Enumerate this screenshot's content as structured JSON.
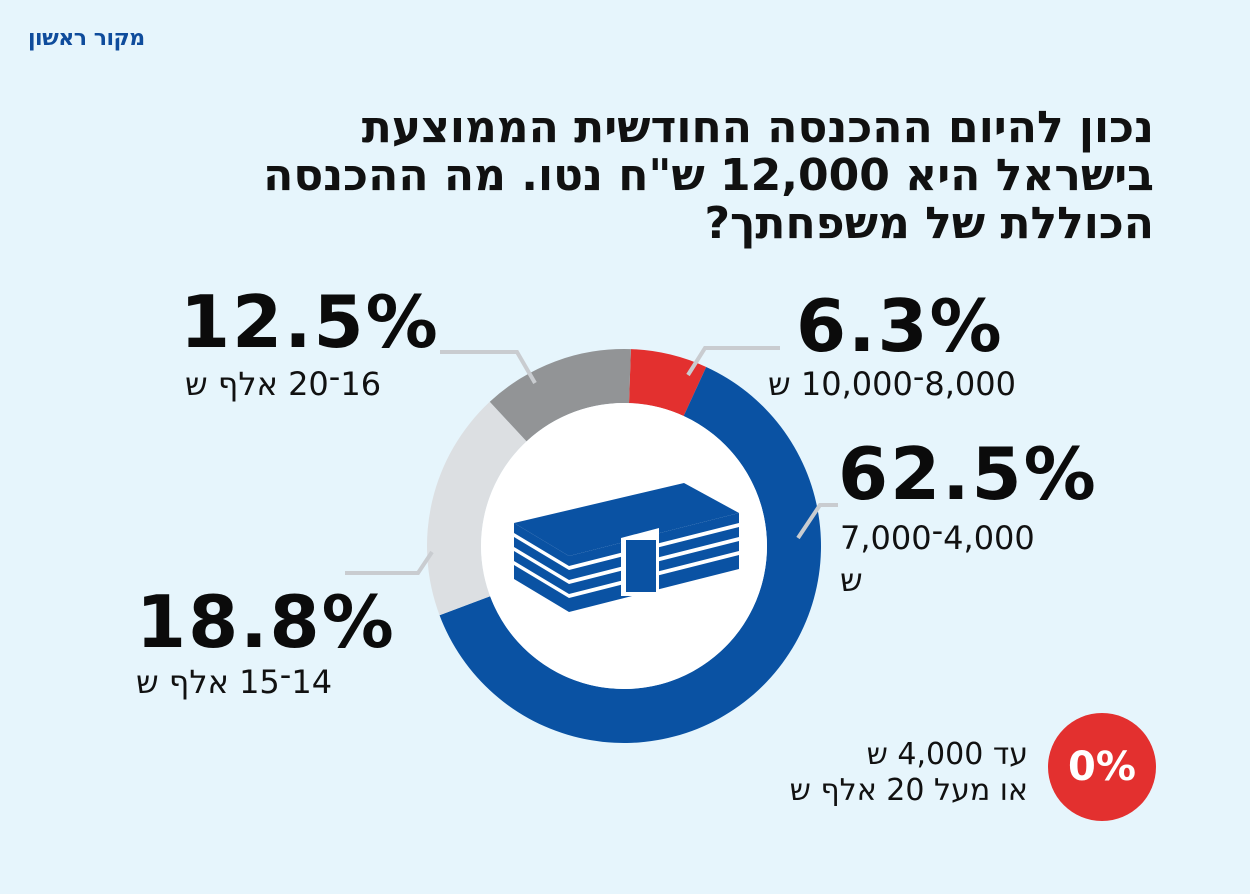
{
  "brand": "מקור ראשון",
  "title_lines": [
    "נכון להיום ההכנסה החודשית הממוצעת",
    "בישראל היא 12,000 ש\"ח נטו. מה ההכנסה",
    "הכוללת של משפחתך?"
  ],
  "colors": {
    "blue": "#0a52a3",
    "red": "#e3302f",
    "gray": "#929496",
    "lightgray": "#dcdfe2",
    "background": "#e6f5fc"
  },
  "chart_data": {
    "type": "pie",
    "style": "donut",
    "center_icon": "money-stack-icon",
    "slices": [
      {
        "range": "8,000־10,000 ש",
        "value": 6.3,
        "label": "6.3%",
        "color": "#e3302f"
      },
      {
        "range": "4,000־7,000 ש",
        "value": 62.5,
        "label": "62.5%",
        "color": "#0a52a3"
      },
      {
        "range": "14־15 אלף ש",
        "value": 18.8,
        "label": "18.8%",
        "color": "#dcdfe2"
      },
      {
        "range": "16־20 אלף ש",
        "value": 12.5,
        "label": "12.5%",
        "color": "#929496"
      }
    ]
  },
  "labels": {
    "s1_pct": "6.3%",
    "s1_range": "8,000־10,000 ש",
    "s2_pct": "62.5%",
    "s2_range_a": "4,000־7,000",
    "s2_range_b": "ש",
    "s3_pct": "18.8%",
    "s3_range": "14־15 אלף ש",
    "s4_pct": "12.5%",
    "s4_range": "16־20 אלף ש"
  },
  "zero": {
    "value": "0%",
    "line1": "עד 4,000 ש",
    "line2": "או מעל 20 אלף ש"
  }
}
